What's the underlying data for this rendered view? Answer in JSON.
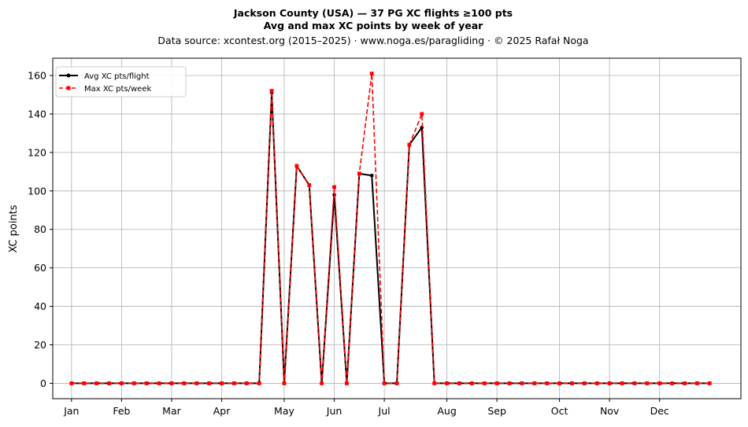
{
  "chart_data": {
    "type": "line",
    "title_lines": [
      "Jackson County (USA)  —  37 PG XC flights ≥100 pts",
      "Avg and max XC points by week of year"
    ],
    "subtitle": "Data source: xcontest.org (2015–2025)  ·  www.noga.es/paragliding  ·  © 2025 Rafał Noga",
    "xlabel": "",
    "ylabel": "XC points",
    "ylim": [
      -8,
      169
    ],
    "xlim": [
      -1.5,
      53.5
    ],
    "yticks": [
      0,
      20,
      40,
      60,
      80,
      100,
      120,
      140,
      160
    ],
    "month_ticks": [
      {
        "label": "Jan",
        "week": 0
      },
      {
        "label": "Feb",
        "week": 4
      },
      {
        "label": "Mar",
        "week": 8
      },
      {
        "label": "Apr",
        "week": 12
      },
      {
        "label": "May",
        "week": 17
      },
      {
        "label": "Jun",
        "week": 21
      },
      {
        "label": "Jul",
        "week": 25
      },
      {
        "label": "Aug",
        "week": 30
      },
      {
        "label": "Sep",
        "week": 34
      },
      {
        "label": "Oct",
        "week": 39
      },
      {
        "label": "Nov",
        "week": 43
      },
      {
        "label": "Dec",
        "week": 47
      }
    ],
    "grid": true,
    "legend_position": "top-left",
    "x": [
      0,
      1,
      2,
      3,
      4,
      5,
      6,
      7,
      8,
      9,
      10,
      11,
      12,
      13,
      14,
      15,
      16,
      17,
      18,
      19,
      20,
      21,
      22,
      23,
      24,
      25,
      26,
      27,
      28,
      29,
      30,
      31,
      32,
      33,
      34,
      35,
      36,
      37,
      38,
      39,
      40,
      41,
      42,
      43,
      44,
      45,
      46,
      47,
      48,
      49,
      50,
      51
    ],
    "series": [
      {
        "name": "Avg XC pts/flight",
        "color": "#000000",
        "style": "solid",
        "marker": "circle",
        "values": [
          0,
          0,
          0,
          0,
          0,
          0,
          0,
          0,
          0,
          0,
          0,
          0,
          0,
          0,
          0,
          0,
          151,
          0,
          113,
          103,
          0,
          98,
          0,
          109,
          108,
          0,
          0,
          124,
          133,
          0,
          0,
          0,
          0,
          0,
          0,
          0,
          0,
          0,
          0,
          0,
          0,
          0,
          0,
          0,
          0,
          0,
          0,
          0,
          0,
          0,
          0,
          0
        ]
      },
      {
        "name": "Max XC pts/week",
        "color": "#ff0000",
        "style": "dashed",
        "marker": "square",
        "values": [
          0,
          0,
          0,
          0,
          0,
          0,
          0,
          0,
          0,
          0,
          0,
          0,
          0,
          0,
          0,
          0,
          152,
          0,
          113,
          103,
          0,
          102,
          0,
          109,
          161,
          0,
          0,
          124,
          140,
          0,
          0,
          0,
          0,
          0,
          0,
          0,
          0,
          0,
          0,
          0,
          0,
          0,
          0,
          0,
          0,
          0,
          0,
          0,
          0,
          0,
          0,
          0
        ]
      }
    ]
  }
}
